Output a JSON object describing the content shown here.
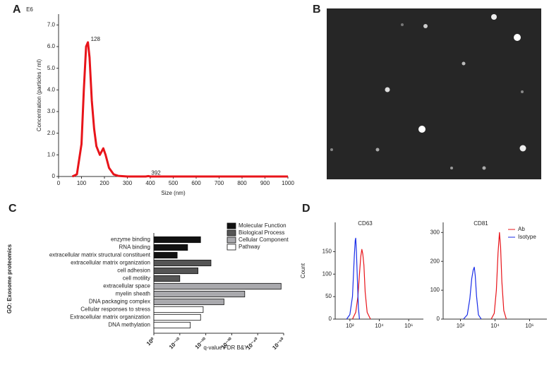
{
  "chart_data": [
    {
      "type": "line",
      "panel": "A",
      "xlabel": "Size (nm)",
      "ylabel": "Concentration (particles / ml)",
      "yunit": "E6",
      "xlim": [
        0,
        1000
      ],
      "xticks": [
        0,
        100,
        200,
        300,
        400,
        500,
        600,
        700,
        800,
        900,
        1000
      ],
      "ylim": [
        0,
        7.5
      ],
      "yticks": [
        0,
        {
          "value": 1,
          "label": "1.0"
        },
        {
          "value": 2,
          "label": "2.0"
        },
        {
          "value": 3,
          "label": "3.0"
        },
        {
          "value": 4,
          "label": "4.0"
        },
        {
          "value": 5,
          "label": "5.0"
        },
        {
          "value": 6,
          "label": "6.0"
        },
        {
          "value": 7,
          "label": "7.0"
        }
      ],
      "series": [
        {
          "color": "#e8141a",
          "x": [
            60,
            80,
            100,
            110,
            120,
            128,
            135,
            145,
            155,
            165,
            180,
            195,
            205,
            220,
            240,
            260,
            300,
            380,
            392,
            400,
            1000
          ],
          "values": [
            0,
            0.1,
            1.5,
            4,
            6,
            6.2,
            5.5,
            3.5,
            2.2,
            1.4,
            1.0,
            1.3,
            1.0,
            0.4,
            0.1,
            0.03,
            0,
            0,
            0.02,
            0,
            0
          ]
        }
      ],
      "annotations": [
        {
          "text": "128",
          "x": 128,
          "y": 6.2
        },
        {
          "text": "392",
          "x": 392,
          "y": 0.02
        }
      ]
    },
    {
      "type": "image",
      "panel": "B"
    },
    {
      "type": "bar",
      "panel": "C",
      "orientation": "horizontal",
      "xscale": "log",
      "xlabel": "q-value FDR B&Y",
      "ylabel": "GO: Exosome proteomics",
      "categories": [
        "enzyme binding",
        "RNA binding",
        "extracellular matrix structural constituent",
        "extracellular matrix organization",
        "cell adhesion",
        "cell motility",
        "extracellular space",
        "myelin sheath",
        "DNA packaging complex",
        "Cellular responses to stress",
        "Extracellular matrix organization",
        "DNA methylation"
      ],
      "xlim": [
        1,
        1e-50
      ],
      "xticks": [
        {
          "value": 1,
          "label": "10⁰"
        },
        {
          "value": 1e-10,
          "label": "10⁻¹⁰"
        },
        {
          "value": 1e-20,
          "label": "10⁻²⁰"
        },
        {
          "value": 1e-30,
          "label": "10⁻³⁰"
        },
        {
          "value": 1e-40,
          "label": "10⁻⁴⁰"
        },
        {
          "value": 1e-50,
          "label": "10⁻⁵⁰"
        }
      ],
      "legend": "upper right",
      "series": [
        {
          "name": "Molecular Function",
          "color": "#111111",
          "values": [
            1e-18,
            1e-13,
            1e-09,
            null,
            null,
            null,
            null,
            null,
            null,
            null,
            null,
            null
          ]
        },
        {
          "name": "Biological Process",
          "color": "#555555",
          "values": [
            null,
            null,
            null,
            1e-22,
            1e-17,
            1e-10,
            null,
            null,
            null,
            null,
            null,
            null
          ]
        },
        {
          "name": "Cellular Component",
          "color": "#a9a9ad",
          "values": [
            null,
            null,
            null,
            null,
            null,
            null,
            1e-49,
            1e-35,
            1e-27,
            null,
            null,
            null
          ]
        },
        {
          "name": "Pathway",
          "color": "#ffffff",
          "values": [
            null,
            null,
            null,
            null,
            null,
            null,
            null,
            null,
            null,
            1e-19,
            1e-18,
            1e-14
          ]
        }
      ]
    },
    {
      "type": "line",
      "panel": "D",
      "title": "CD63",
      "ylabel": "Count",
      "xscale": "log",
      "xlim": [
        10,
        10000000
      ],
      "xticks": [
        {
          "value": 100,
          "label": "10²"
        },
        {
          "value": 10000,
          "label": "10⁴"
        },
        {
          "value": 1000000,
          "label": "10⁶"
        }
      ],
      "ylim": [
        0,
        215
      ],
      "yticks": [
        0,
        50,
        100,
        150
      ],
      "series": [
        {
          "color": "#e8141a",
          "x": [
            150,
            250,
            350,
            450,
            550,
            650,
            750,
            900,
            1100,
            1500,
            2500
          ],
          "values": [
            0,
            15,
            50,
            100,
            140,
            155,
            145,
            120,
            60,
            15,
            0
          ]
        },
        {
          "color": "#1a2ee8",
          "x": [
            60,
            100,
            150,
            200,
            230,
            250,
            280,
            320,
            380,
            450
          ],
          "values": [
            0,
            10,
            50,
            140,
            175,
            180,
            150,
            90,
            25,
            0
          ]
        }
      ]
    },
    {
      "type": "line",
      "title": "CD81",
      "xscale": "log",
      "legend": "upper right",
      "xlim": [
        10,
        10000000
      ],
      "xticks": [
        {
          "value": 100,
          "label": "10²"
        },
        {
          "value": 10000,
          "label": "10⁴"
        },
        {
          "value": 1000000,
          "label": "10⁶"
        }
      ],
      "ylim": [
        0,
        335
      ],
      "yticks": [
        0,
        100,
        200,
        300
      ],
      "series": [
        {
          "name": "Ab",
          "color": "#e8141a",
          "x": [
            6000,
            9000,
            12000,
            15000,
            18000,
            21000,
            25000,
            32000,
            45000
          ],
          "values": [
            0,
            20,
            100,
            230,
            300,
            250,
            130,
            30,
            0
          ]
        },
        {
          "name": "Isotype",
          "color": "#1a2ee8",
          "x": [
            150,
            250,
            350,
            450,
            550,
            630,
            720,
            850,
            1100,
            1600
          ],
          "values": [
            0,
            15,
            70,
            140,
            170,
            180,
            150,
            80,
            15,
            0
          ]
        }
      ]
    }
  ]
}
